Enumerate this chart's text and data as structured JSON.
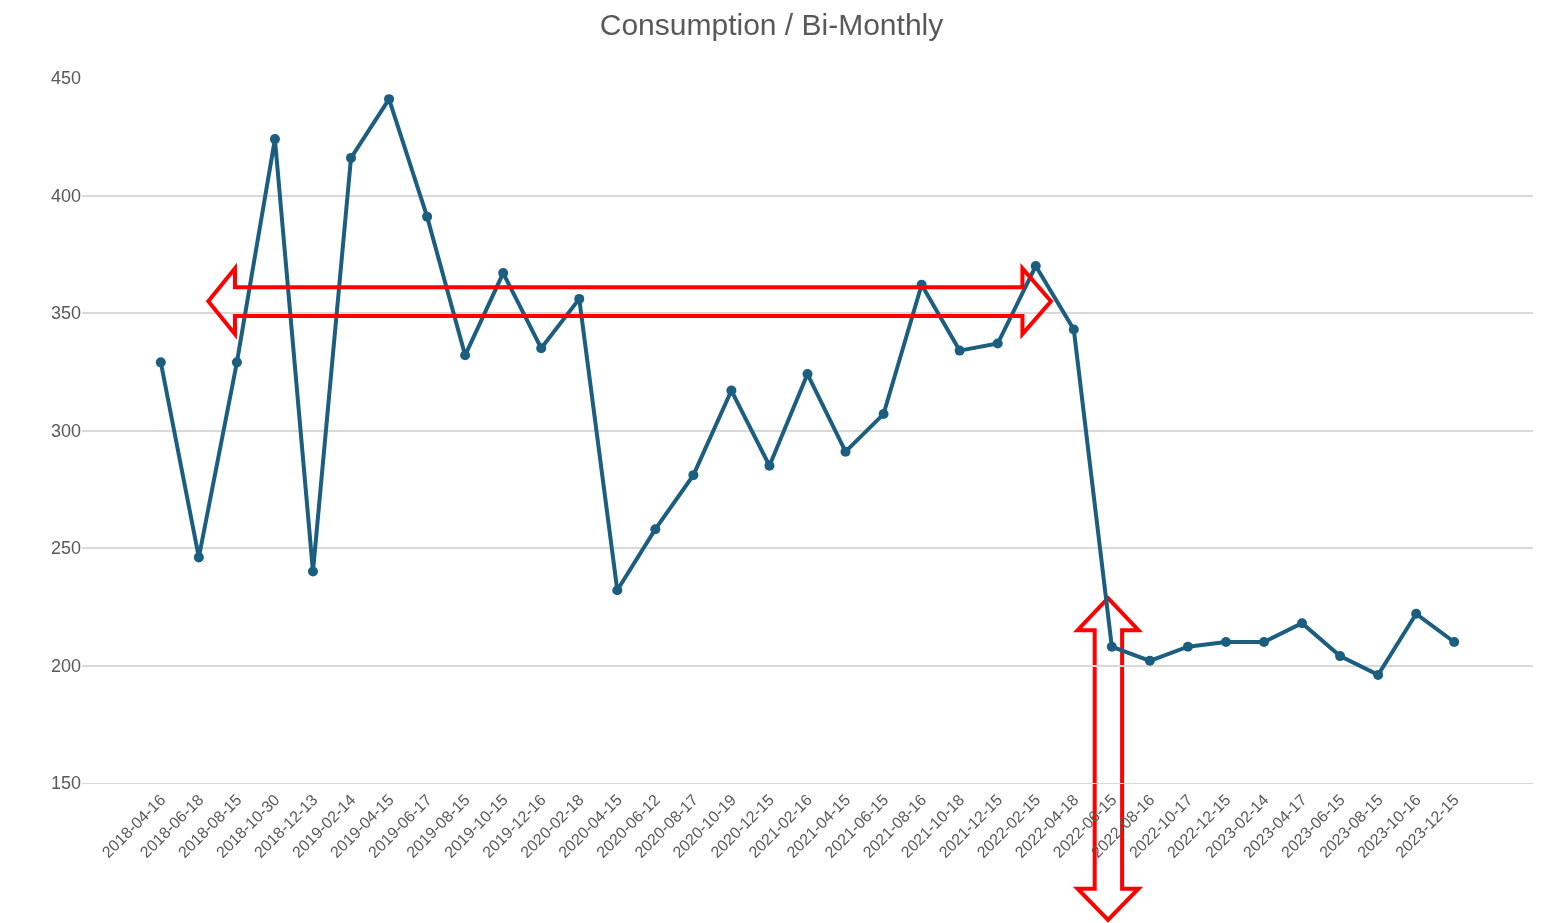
{
  "chart_data": {
    "type": "line",
    "title": "Consumption / Bi-Monthly",
    "categories": [
      "2018-04-16",
      "2018-06-18",
      "2018-08-15",
      "2018-10-30",
      "2018-12-13",
      "2019-02-14",
      "2019-04-15",
      "2019-06-17",
      "2019-08-15",
      "2019-10-15",
      "2019-12-16",
      "2020-02-18",
      "2020-04-15",
      "2020-06-12",
      "2020-08-17",
      "2020-10-19",
      "2020-12-15",
      "2021-02-16",
      "2021-04-15",
      "2021-06-15",
      "2021-08-16",
      "2021-10-18",
      "2021-12-15",
      "2022-02-15",
      "2022-04-18",
      "2022-06-15",
      "2022-08-16",
      "2022-10-17",
      "2022-12-15",
      "2023-02-14",
      "2023-04-17",
      "2023-06-15",
      "2023-08-15",
      "2023-10-16",
      "2023-12-15"
    ],
    "series": [
      {
        "color": "#1b5e80",
        "values": [
          329,
          246,
          329,
          424,
          240,
          416,
          441,
          391,
          332,
          367,
          335,
          356,
          232,
          258,
          281,
          317,
          285,
          324,
          291,
          307,
          362,
          334,
          337,
          370,
          343,
          208,
          202,
          208,
          210,
          210,
          218,
          204,
          196,
          222,
          210
        ]
      }
    ],
    "ylim": [
      150,
      450
    ],
    "yticks": [
      150,
      200,
      250,
      300,
      350,
      400,
      450
    ],
    "grid": "y",
    "marker": "circle",
    "line_style": "solid"
  }
}
